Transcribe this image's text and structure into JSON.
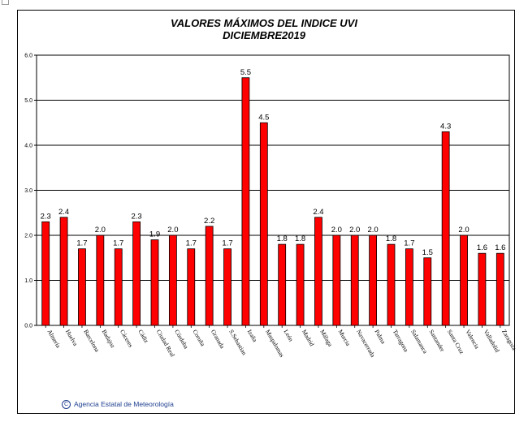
{
  "chart_data": {
    "type": "bar",
    "title": "VALORES MÁXIMOS DEL INDICE UVI",
    "subtitle": "DICIEMBRE2019",
    "xlabel": "",
    "ylabel": "",
    "ylim": [
      0,
      6
    ],
    "yticks": [
      "0.0",
      "1.0",
      "2.0",
      "3.0",
      "4.0",
      "5.0",
      "6.0"
    ],
    "grid": true,
    "bar_color": "#ff0000",
    "categories": [
      "Almería",
      "Huelva",
      "Barcelona",
      "Badajoz",
      "Cáceres",
      "Cádiz",
      "Ciudad Real",
      "Córdoba",
      "Coruña",
      "Granada",
      "S.Sebastian",
      "Izaña",
      "Maspalomas",
      "León",
      "Madrid",
      "Málaga",
      "Murcia",
      "Navacerrada",
      "Palma",
      "Tarragona",
      "Salamanca",
      "Santander",
      "Santa Cruz",
      "Valencia",
      "Valladolid",
      "Zaragoza"
    ],
    "values": [
      2.3,
      2.4,
      1.7,
      2.0,
      1.7,
      2.3,
      1.9,
      2.0,
      1.7,
      2.2,
      1.7,
      5.5,
      4.5,
      1.8,
      1.8,
      2.4,
      2.0,
      2.0,
      2.0,
      1.8,
      1.7,
      1.5,
      4.3,
      2.0,
      1.6,
      1.6
    ],
    "value_labels": [
      "2.3",
      "2.4",
      "1.7",
      "2.0",
      "1.7",
      "2.3",
      "1.9",
      "2.0",
      "1.7",
      "2.2",
      "1.7",
      "5.5",
      "4.5",
      "1.8",
      "1.8",
      "2.4",
      "2.0",
      "2.0",
      "2.0",
      "1.8",
      "1.7",
      "1.5",
      "4.3",
      "2.0",
      "1.6",
      "1.6"
    ]
  },
  "footer": {
    "copyright_symbol": "C",
    "credit": "Agencia Estatal de Meteorología"
  }
}
